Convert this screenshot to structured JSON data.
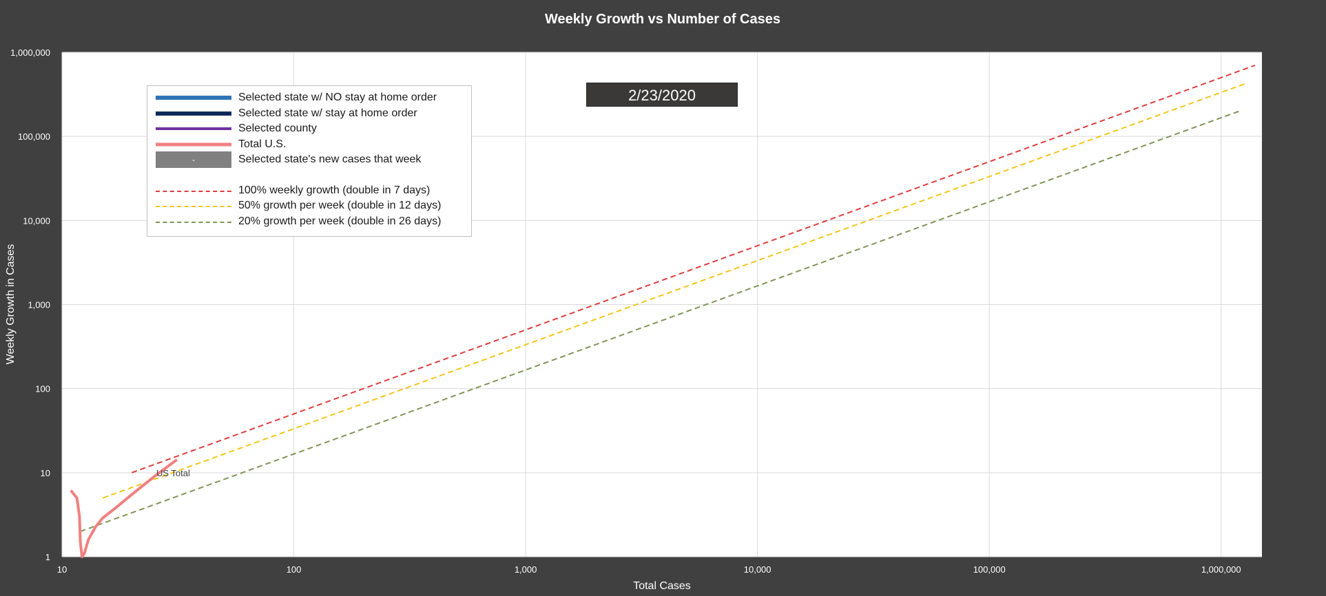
{
  "chart_data": {
    "type": "line",
    "title": "Weekly Growth vs Number of Cases",
    "xlabel": "Total Cases",
    "ylabel": "Weekly Growth in Cases",
    "xscale": "log",
    "yscale": "log",
    "xlim": [
      10,
      1500000
    ],
    "ylim": [
      1,
      1000000
    ],
    "grid": true,
    "xticks": [
      "10",
      "100",
      "1,000",
      "10,000",
      "100,000",
      "1,000,000"
    ],
    "xtick_values": [
      10,
      100,
      1000,
      10000,
      100000,
      1000000
    ],
    "yticks": [
      "1",
      "10",
      "100",
      "1,000",
      "10,000",
      "100,000",
      "1,000,000"
    ],
    "ytick_values": [
      1,
      10,
      100,
      1000,
      10000,
      100000,
      1000000
    ],
    "date_label": "2/23/2020",
    "annotation": "US Total",
    "legend": {
      "placement": "top-left",
      "entries": [
        {
          "label": "Selected state w/ NO stay at home order",
          "color": "#2e75b6",
          "style": "solid",
          "swatch": ""
        },
        {
          "label": "Selected state w/ stay at home order",
          "color": "#0e2a5a",
          "style": "solid",
          "swatch": ""
        },
        {
          "label": "Selected county",
          "color": "#7030a0",
          "style": "solid",
          "swatch": ""
        },
        {
          "label": "Total U.S.",
          "color": "#f08080",
          "style": "solid",
          "swatch": ""
        },
        {
          "label": "Selected state's new cases that week",
          "color": "#808080",
          "style": "box",
          "swatch": "-"
        },
        {
          "label": "100% weekly growth (double in 7 days)",
          "color": "#e03c3c",
          "style": "dashed",
          "swatch": ""
        },
        {
          "label": "50% growth per week (double in 12 days)",
          "color": "#f5c518",
          "style": "dashed",
          "swatch": ""
        },
        {
          "label": "20% growth per week (double in 26 days)",
          "color": "#7f9456",
          "style": "dashed",
          "swatch": ""
        }
      ]
    },
    "series": [
      {
        "name": "100% weekly growth (double in 7 days)",
        "color": "#e03c3c",
        "style": "dashed",
        "x": [
          20,
          1400000
        ],
        "y": [
          10,
          700000
        ]
      },
      {
        "name": "50% growth per week (double in 12 days)",
        "color": "#f5c518",
        "style": "dashed",
        "x": [
          15,
          1300000
        ],
        "y": [
          5,
          433000
        ]
      },
      {
        "name": "20% growth per week (double in 26 days)",
        "color": "#7f9456",
        "style": "dashed",
        "x": [
          12,
          1200000
        ],
        "y": [
          2,
          200000
        ]
      },
      {
        "name": "Total U.S.",
        "color": "#f08080",
        "style": "solid",
        "x": [
          11,
          11.6,
          11.9,
          12.0,
          12.2,
          12.5,
          13.0,
          14.0,
          15.0,
          17.0,
          20.0,
          25.0,
          31.0
        ],
        "y": [
          6,
          5,
          3,
          1.5,
          1,
          1.1,
          1.6,
          2.3,
          2.9,
          3.8,
          5.5,
          9,
          14
        ]
      }
    ]
  }
}
